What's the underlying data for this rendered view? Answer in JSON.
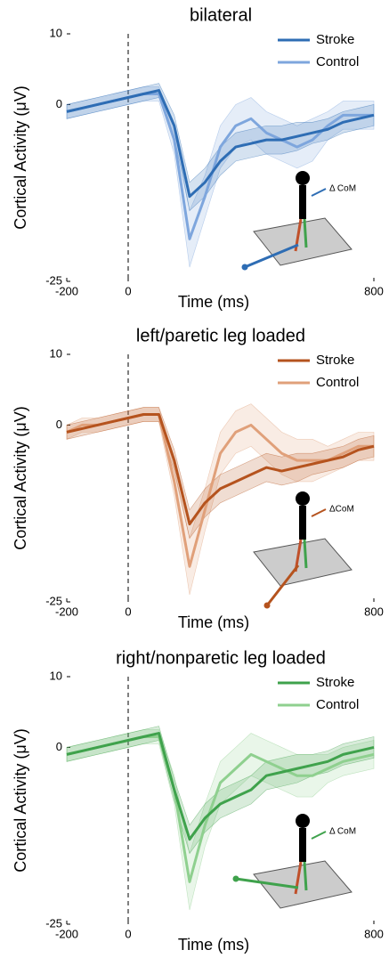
{
  "chart_data": [
    {
      "type": "line",
      "title": "bilateral",
      "xlabel": "Time (ms)",
      "ylabel": "Cortical Activity (μV)",
      "x": [
        -200,
        -150,
        -100,
        -50,
        0,
        50,
        100,
        150,
        200,
        250,
        300,
        350,
        400,
        450,
        500,
        550,
        600,
        650,
        700,
        750,
        800
      ],
      "xlim": [
        -200,
        800
      ],
      "ylim": [
        -25,
        10
      ],
      "xticks": [
        -200,
        0,
        800
      ],
      "yticks": [
        -25,
        0,
        10
      ],
      "vline": 0,
      "annotation": "Δ CoM",
      "series": [
        {
          "name": "Stroke",
          "color": "#2e6db4",
          "values": [
            -1,
            -0.5,
            0,
            0.5,
            1,
            1.5,
            2,
            -3,
            -13,
            -11,
            -8,
            -6,
            -5.5,
            -5,
            -5,
            -4.5,
            -4,
            -3.5,
            -2.5,
            -2,
            -1.5
          ],
          "error": [
            1,
            1,
            1,
            1,
            1,
            1,
            1,
            1.5,
            2,
            2,
            2,
            2,
            2,
            2,
            2,
            2,
            1.5,
            1.5,
            1.5,
            1.5,
            1.5
          ]
        },
        {
          "name": "Control",
          "color": "#7ea6dd",
          "values": [
            -1,
            -0.5,
            0,
            0.5,
            1,
            1.5,
            1.5,
            -5,
            -19,
            -13,
            -6,
            -3,
            -2,
            -4,
            -5,
            -6,
            -5,
            -3,
            -1.5,
            -1.5,
            -1.5
          ],
          "error": [
            1,
            1,
            1,
            1,
            1,
            1,
            1,
            2,
            4,
            3,
            3,
            3,
            3,
            3,
            3,
            3,
            3,
            2,
            2,
            2,
            2
          ]
        }
      ]
    },
    {
      "type": "line",
      "title": "left/paretic leg loaded",
      "xlabel": "Time (ms)",
      "ylabel": "Cortical Activity (μV)",
      "x": [
        -200,
        -150,
        -100,
        -50,
        0,
        50,
        100,
        150,
        200,
        250,
        300,
        350,
        400,
        450,
        500,
        550,
        600,
        650,
        700,
        750,
        800
      ],
      "xlim": [
        -200,
        800
      ],
      "ylim": [
        -25,
        10
      ],
      "xticks": [
        -200,
        0,
        800
      ],
      "yticks": [
        -25,
        0,
        10
      ],
      "vline": 0,
      "annotation": "ΔCoM",
      "series": [
        {
          "name": "Stroke",
          "color": "#b5531e",
          "values": [
            -1,
            -0.5,
            0,
            0.5,
            1,
            1.5,
            1.5,
            -5,
            -14,
            -11,
            -9,
            -8,
            -7,
            -6,
            -6.5,
            -6,
            -5.5,
            -5,
            -4.5,
            -3.5,
            -3
          ],
          "error": [
            1,
            1,
            1,
            1,
            1,
            1,
            1,
            1.5,
            2,
            2,
            2,
            2,
            2,
            2,
            2,
            2,
            1.5,
            1.5,
            1.5,
            1.5,
            1.5
          ]
        },
        {
          "name": "Control",
          "color": "#e0a07a",
          "values": [
            -1,
            0,
            0,
            0.5,
            1,
            1.5,
            1.5,
            -8,
            -20,
            -12,
            -4,
            -1,
            0,
            -2,
            -4,
            -5,
            -5,
            -5,
            -4,
            -3,
            -3
          ],
          "error": [
            1,
            1,
            1,
            1,
            1,
            1,
            1,
            2,
            4,
            3,
            3,
            3,
            3,
            3,
            3,
            3,
            3,
            2,
            2,
            2,
            2
          ]
        }
      ]
    },
    {
      "type": "line",
      "title": "right/nonparetic leg loaded",
      "xlabel": "Time (ms)",
      "ylabel": "Cortical Activity (μV)",
      "x": [
        -200,
        -150,
        -100,
        -50,
        0,
        50,
        100,
        150,
        200,
        250,
        300,
        350,
        400,
        450,
        500,
        550,
        600,
        650,
        700,
        750,
        800
      ],
      "xlim": [
        -200,
        800
      ],
      "ylim": [
        -25,
        10
      ],
      "xticks": [
        -200,
        0,
        800
      ],
      "yticks": [
        -25,
        0,
        10
      ],
      "vline": 0,
      "annotation": "Δ CoM",
      "series": [
        {
          "name": "Stroke",
          "color": "#3fa24c",
          "values": [
            -1,
            -0.5,
            0,
            0.5,
            1,
            1.5,
            2,
            -6,
            -13,
            -10,
            -8,
            -7,
            -6,
            -4,
            -3.5,
            -3,
            -2.5,
            -2,
            -1,
            -0.5,
            0
          ],
          "error": [
            1,
            1,
            1,
            1,
            1,
            1,
            1,
            1.5,
            2,
            2,
            2,
            2,
            2,
            2,
            2,
            2,
            1.5,
            1.5,
            1.5,
            1.5,
            1.5
          ]
        },
        {
          "name": "Control",
          "color": "#8fd08f",
          "values": [
            -1,
            -0.5,
            0,
            0.5,
            1,
            1.5,
            1.5,
            -6,
            -19,
            -11,
            -5,
            -3,
            -1,
            -2,
            -3,
            -4,
            -4,
            -3,
            -2,
            -1.5,
            -1
          ],
          "error": [
            1,
            1,
            1,
            1,
            1,
            1,
            1,
            2,
            4,
            3,
            3,
            3,
            3,
            3,
            3,
            3,
            3,
            2,
            2,
            2,
            2
          ]
        }
      ]
    }
  ]
}
